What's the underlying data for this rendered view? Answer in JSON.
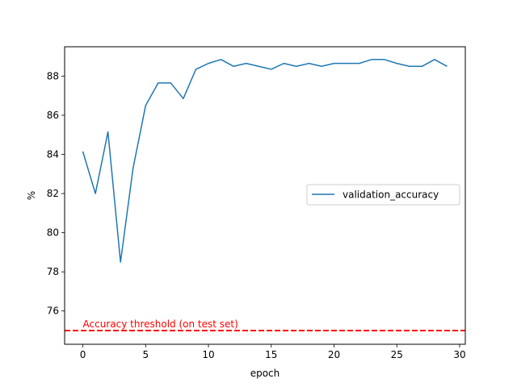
{
  "chart_data": {
    "type": "line",
    "title": "",
    "xlabel": "epoch",
    "ylabel": "%",
    "xlim": [
      -1.45,
      30.45
    ],
    "ylim": [
      74.3,
      89.5
    ],
    "xticks": [
      0,
      5,
      10,
      15,
      20,
      25,
      30
    ],
    "yticks": [
      76,
      78,
      80,
      82,
      84,
      86,
      88
    ],
    "grid": false,
    "legend": {
      "placement": "center-right",
      "entries": [
        "validation_accuracy"
      ]
    },
    "series": [
      {
        "name": "validation_accuracy",
        "color": "#1f77b4",
        "x": [
          0,
          1,
          2,
          3,
          4,
          5,
          6,
          7,
          8,
          9,
          10,
          11,
          12,
          13,
          14,
          15,
          16,
          17,
          18,
          19,
          20,
          21,
          22,
          23,
          24,
          25,
          26,
          27,
          28,
          29
        ],
        "y": [
          84.15,
          82.0,
          85.15,
          78.5,
          83.3,
          86.5,
          87.65,
          87.65,
          86.85,
          88.35,
          88.65,
          88.85,
          88.5,
          88.65,
          88.5,
          88.35,
          88.65,
          88.5,
          88.65,
          88.5,
          88.65,
          88.65,
          88.65,
          88.85,
          88.85,
          88.65,
          88.5,
          88.5,
          88.85,
          88.5
        ]
      }
    ],
    "annotations": [
      {
        "type": "hline",
        "y": 75.0,
        "color": "#ff0000",
        "style": "dashed",
        "label": "Accuracy threshold (on test set)"
      }
    ]
  }
}
